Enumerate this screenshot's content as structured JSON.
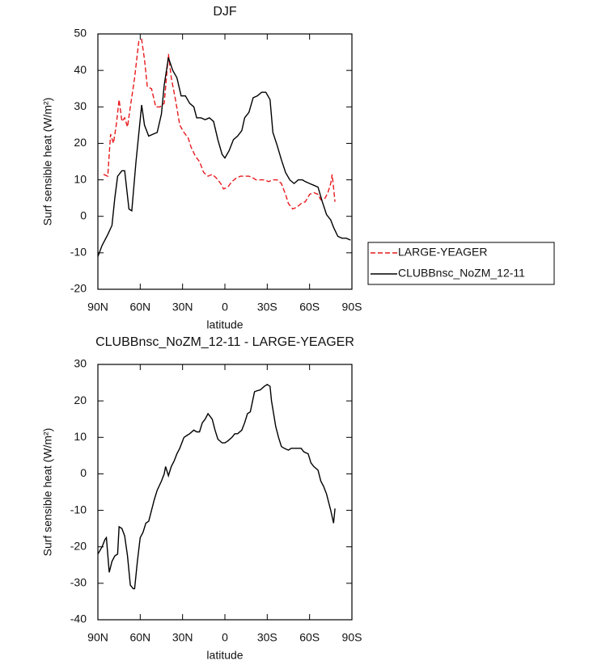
{
  "chart_data": [
    {
      "type": "line",
      "title": "DJF",
      "x_label": "latitude",
      "y_label": "Surf sensible heat (W/m²)",
      "xlim": [
        90,
        -90
      ],
      "xticks": [
        {
          "value": 90,
          "label": "90N"
        },
        {
          "value": 60,
          "label": "60N"
        },
        {
          "value": 30,
          "label": "30N"
        },
        0,
        {
          "value": -30,
          "label": "30S"
        },
        {
          "value": -60,
          "label": "60S"
        },
        {
          "value": -90,
          "label": "90S"
        }
      ],
      "ylim": [
        -20,
        50
      ],
      "yticks": [
        -20,
        -10,
        0,
        10,
        20,
        30,
        40,
        50
      ],
      "legend": "right",
      "series": [
        {
          "name": "LARGE-YEAGER",
          "color": "#e8191d",
          "style": "dashed",
          "x": [
            86,
            83,
            81,
            79,
            77,
            75,
            73,
            71,
            69,
            67,
            64,
            61,
            59,
            57,
            55,
            52,
            49,
            46,
            43,
            40,
            38,
            35,
            32,
            29,
            26,
            24,
            21,
            18,
            15,
            12,
            9,
            6,
            3,
            1,
            -2,
            -5,
            -8,
            -11,
            -14,
            -17,
            -20,
            -22,
            -25,
            -28,
            -31,
            -34,
            -37,
            -40,
            -43,
            -45,
            -48,
            -51,
            -54,
            -57,
            -60,
            -63,
            -66,
            -68,
            -71,
            -73,
            -75,
            -76,
            -78
          ],
          "values": [
            11.5,
            11,
            22.5,
            20,
            25,
            32,
            26,
            27,
            24.5,
            30,
            38,
            48,
            48.5,
            43,
            35.5,
            35,
            30,
            30,
            31,
            44.5,
            38,
            32,
            25,
            23,
            21.5,
            19,
            16.5,
            15,
            12,
            11,
            11.5,
            10.5,
            9,
            7.5,
            8,
            9.5,
            10.5,
            11,
            11,
            11,
            10.5,
            10,
            10,
            10,
            9.5,
            10,
            10,
            9,
            6,
            3.5,
            2,
            2.5,
            3.5,
            4,
            6,
            6.5,
            6,
            4.5,
            5,
            6.5,
            9,
            11.5,
            4
          ]
        },
        {
          "name": "CLUBBnsc_NoZM_12-11",
          "color": "#000000",
          "style": "solid",
          "x": [
            90,
            87,
            83,
            80,
            78,
            76,
            73,
            71,
            68,
            66,
            63,
            59,
            57,
            54,
            51,
            48,
            45,
            43,
            40,
            37,
            34,
            31,
            28,
            25,
            22,
            20,
            17,
            14,
            11,
            8,
            5,
            2,
            0,
            -3,
            -6,
            -9,
            -12,
            -14,
            -17,
            -20,
            -23,
            -26,
            -29,
            -32,
            -34,
            -37,
            -40,
            -43,
            -46,
            -49,
            -52,
            -55,
            -57,
            -60,
            -63,
            -66,
            -69,
            -72,
            -75,
            -77,
            -80,
            -83,
            -86,
            -89
          ],
          "values": [
            -11,
            -8,
            -5,
            -2.5,
            5,
            11,
            12.5,
            12.5,
            2,
            1.5,
            15,
            30.5,
            25,
            22,
            22.5,
            23,
            28,
            36,
            43.5,
            40,
            38,
            33,
            33,
            31,
            30,
            27,
            27,
            26.5,
            27,
            26,
            21,
            17,
            16,
            18,
            21,
            22,
            23.5,
            27,
            28.5,
            32.5,
            33,
            34,
            34,
            32,
            23,
            19.5,
            15.5,
            12,
            10,
            9,
            10,
            10,
            9.5,
            9,
            8.5,
            8,
            4,
            0.5,
            -1,
            -3,
            -5.5,
            -6,
            -6,
            -6.5
          ]
        }
      ]
    },
    {
      "type": "line",
      "title": "CLUBBnsc_NoZM_12-11 - LARGE-YEAGER",
      "x_label": "latitude",
      "y_label": "Surf sensible heat (W/m²)",
      "xlim": [
        90,
        -90
      ],
      "xticks": [
        {
          "value": 90,
          "label": "90N"
        },
        {
          "value": 60,
          "label": "60N"
        },
        {
          "value": 30,
          "label": "30N"
        },
        0,
        {
          "value": -30,
          "label": "30S"
        },
        {
          "value": -60,
          "label": "60S"
        },
        {
          "value": -90,
          "label": "90S"
        }
      ],
      "ylim": [
        -40,
        30
      ],
      "yticks": [
        -40,
        -30,
        -20,
        -10,
        0,
        10,
        20,
        30
      ],
      "color": "#000000",
      "x": [
        90,
        87,
        85,
        84,
        82,
        80,
        78,
        76,
        75,
        73,
        71,
        69,
        67,
        65,
        64,
        62,
        60,
        58,
        56,
        54,
        52,
        50,
        48,
        45,
        43,
        42,
        40,
        38,
        36,
        34,
        32,
        29,
        27,
        25,
        22,
        20,
        18,
        16,
        14,
        12,
        9,
        7,
        5,
        2,
        0,
        -2,
        -5,
        -7,
        -9,
        -12,
        -14,
        -16,
        -18,
        -21,
        -23,
        -25,
        -28,
        -30,
        -32,
        -33,
        -36,
        -38,
        -40,
        -42,
        -45,
        -47,
        -49,
        -52,
        -54,
        -56,
        -59,
        -61,
        -63,
        -66,
        -68,
        -70,
        -72,
        -75,
        -77,
        -78
      ],
      "values": [
        -22,
        -20,
        -18,
        -17.5,
        -27,
        -24,
        -22.5,
        -22,
        -14.5,
        -15,
        -17,
        -22.5,
        -30.5,
        -31.5,
        -31.5,
        -24,
        -17.5,
        -16,
        -13.5,
        -13,
        -10,
        -7,
        -4.5,
        -2,
        0,
        2,
        -0.5,
        2,
        3.5,
        5.5,
        7,
        10,
        10.5,
        11,
        12,
        11.5,
        11.5,
        14,
        15,
        16.5,
        15,
        12,
        9.5,
        8.5,
        8.5,
        9,
        10,
        11,
        11,
        12,
        14,
        16.5,
        17,
        22.5,
        22.8,
        23,
        24,
        24.5,
        24,
        20,
        13,
        10,
        7.5,
        7,
        6.5,
        7,
        7,
        7,
        7,
        6,
        5.5,
        3,
        2,
        1,
        -2,
        -3.5,
        -5.5,
        -10,
        -13.5,
        -9.5
      ]
    }
  ]
}
